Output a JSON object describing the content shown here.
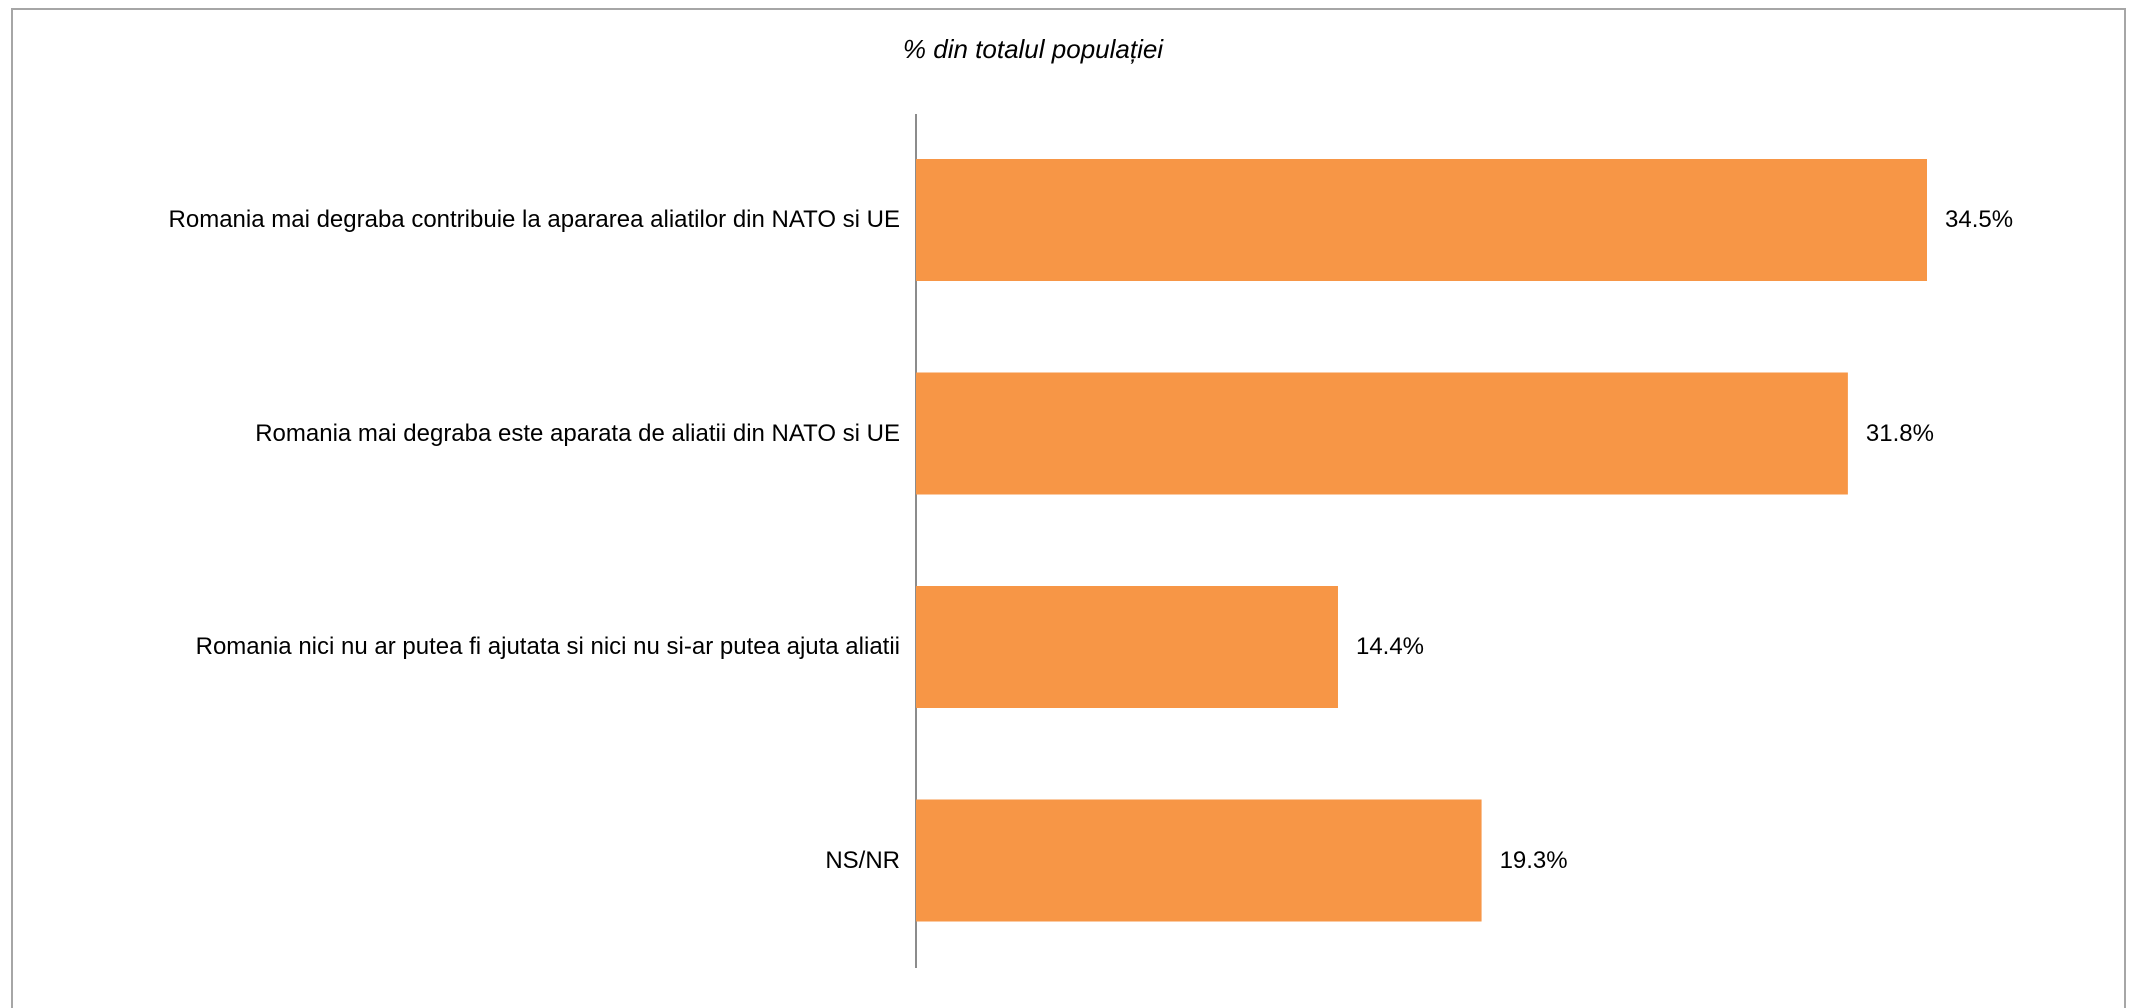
{
  "chart_data": {
    "type": "bar",
    "orientation": "horizontal",
    "title": "% din totalul populației",
    "categories": [
      "Romania mai degraba contribuie la apararea aliatilor din NATO si UE",
      "Romania mai degraba este aparata de aliatii din NATO si UE",
      "Romania nici nu ar putea fi ajutata si nici nu si-ar putea ajuta aliatii",
      "NS/NR"
    ],
    "values": [
      34.5,
      31.8,
      14.4,
      19.3
    ],
    "value_labels": [
      "34.5%",
      "31.8%",
      "14.4%",
      "19.3%"
    ],
    "color": "#f79646"
  }
}
